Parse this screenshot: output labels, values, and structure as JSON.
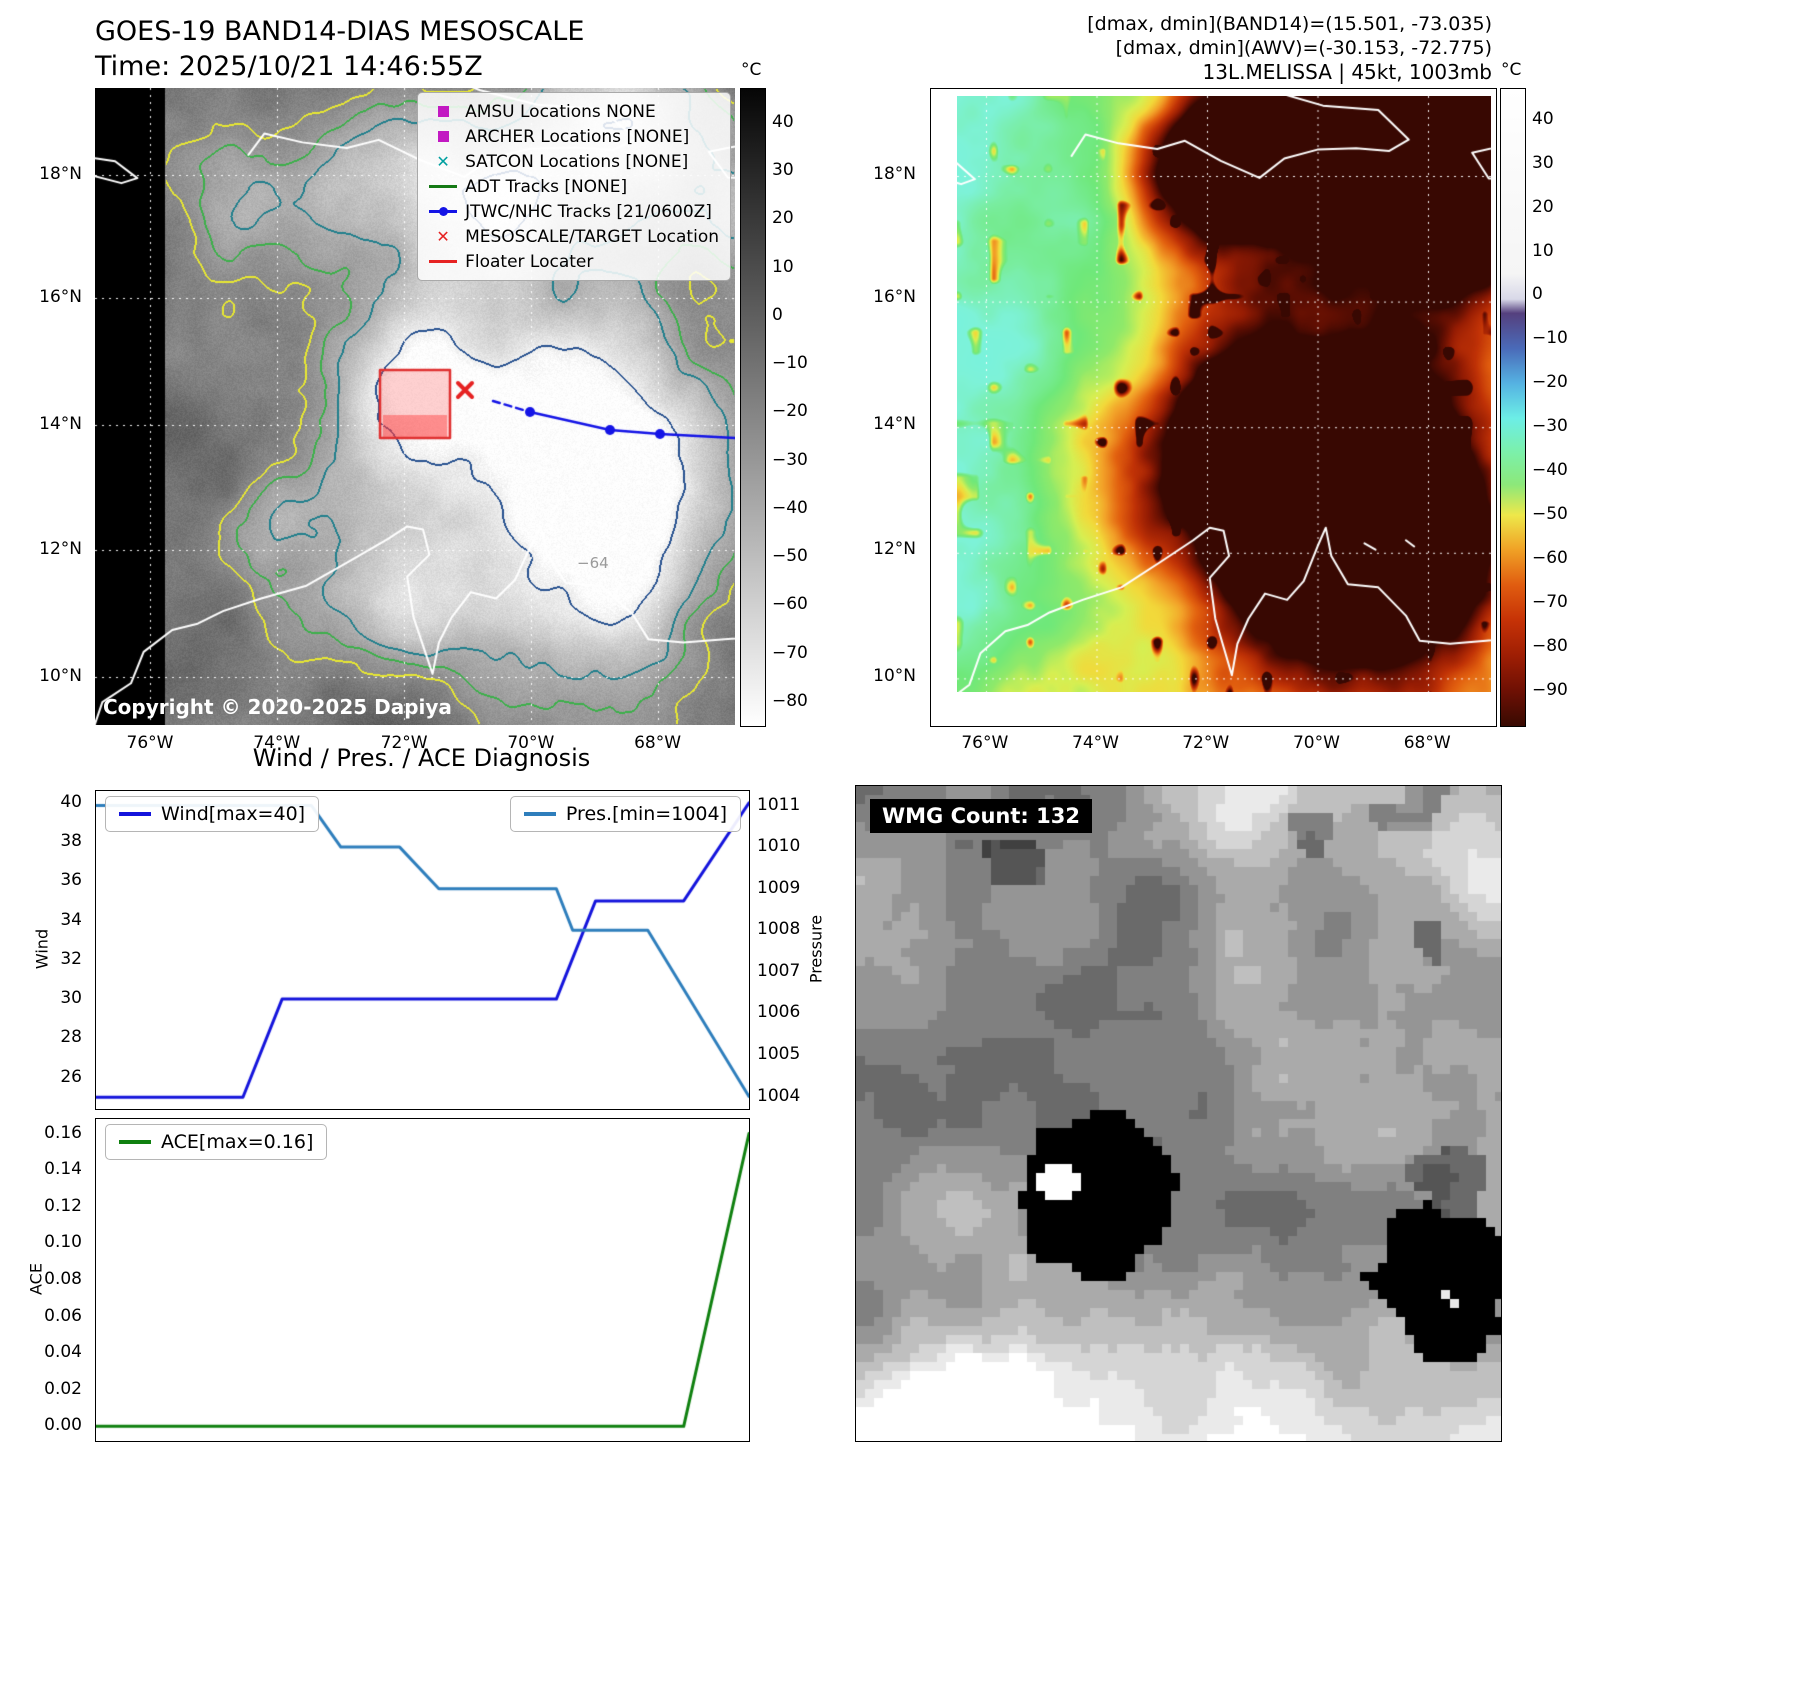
{
  "band14_panel": {
    "title": "GOES-19 BAND14-DIAS MESOSCALE",
    "time_line": "Time: 2025/10/21 14:46:55Z",
    "copyright": "Copyright © 2020-2025 Dapiya",
    "contour_label": "−64",
    "legend": [
      {
        "label": "AMSU Locations NONE",
        "marker": "square",
        "color": "#c219c2"
      },
      {
        "label": "ARCHER Locations [NONE]",
        "marker": "square",
        "color": "#c219c2"
      },
      {
        "label": "SATCON Locations [NONE]",
        "marker": "x",
        "color": "#00a0a0"
      },
      {
        "label": "ADT Tracks [NONE]",
        "marker": "line",
        "color": "#157a15"
      },
      {
        "label": "JTWC/NHC Tracks [21/0600Z]",
        "marker": "line-dot",
        "color": "#1414e6"
      },
      {
        "label": "MESOSCALE/TARGET Location",
        "marker": "x",
        "color": "#e62222"
      },
      {
        "label": "Floater Locater",
        "marker": "line",
        "color": "#e62222"
      }
    ],
    "x_ticks": [
      "76°W",
      "74°W",
      "72°W",
      "70°W",
      "68°W"
    ],
    "y_ticks": [
      "18°N",
      "16°N",
      "14°N",
      "12°N",
      "10°N"
    ],
    "colorbar": {
      "unit": "°C",
      "tick_values": [
        40,
        30,
        20,
        10,
        0,
        -10,
        -20,
        -30,
        -40,
        -50,
        -60,
        -70,
        -80
      ],
      "range": [
        47,
        -85
      ]
    }
  },
  "awv_panel": {
    "annotations": [
      "[dmax, dmin](BAND14)=(15.501, -73.035)",
      "[dmax, dmin](AWV)=(-30.153, -72.775)",
      "13L.MELISSA | 45kt, 1003mb"
    ],
    "x_ticks": [
      "76°W",
      "74°W",
      "72°W",
      "70°W",
      "68°W"
    ],
    "y_ticks": [
      "18°N",
      "16°N",
      "14°N",
      "12°N",
      "10°N"
    ],
    "colorbar": {
      "unit": "°C",
      "tick_values": [
        40,
        30,
        20,
        10,
        0,
        -10,
        -20,
        -30,
        -40,
        -50,
        -60,
        -70,
        -80,
        -90
      ],
      "range": [
        47,
        -98
      ]
    }
  },
  "wmg_panel": {
    "label": "WMG Count: 132"
  },
  "chart_data": [
    {
      "id": "wind_pressure",
      "type": "line",
      "title": "Wind / Pres. / ACE Diagnosis",
      "axes": {
        "left": {
          "label": "Wind",
          "ticks": [
            26,
            28,
            30,
            32,
            34,
            36,
            38,
            40
          ],
          "range": [
            24.4,
            40.6
          ],
          "decimals": 0
        },
        "right": {
          "label": "Pressure",
          "ticks": [
            1004,
            1005,
            1006,
            1007,
            1008,
            1009,
            1010,
            1011
          ],
          "range": [
            1003.7,
            1011.35
          ],
          "decimals": 0
        }
      },
      "series": [
        {
          "name": "Wind[max=40]",
          "axis": "left",
          "color": "#1414dc",
          "legend_pos": "left",
          "points": [
            [
              0,
              25
            ],
            [
              0.225,
              25
            ],
            [
              0.285,
              30
            ],
            [
              0.705,
              30
            ],
            [
              0.765,
              35
            ],
            [
              0.9,
              35
            ],
            [
              1,
              40
            ]
          ]
        },
        {
          "name": "Pres.[min=1004]",
          "axis": "right",
          "color": "#2e7ebc",
          "legend_pos": "right",
          "points": [
            [
              0,
              1011
            ],
            [
              0.33,
              1011
            ],
            [
              0.375,
              1010
            ],
            [
              0.465,
              1010
            ],
            [
              0.525,
              1009
            ],
            [
              0.705,
              1009
            ],
            [
              0.73,
              1008
            ],
            [
              0.845,
              1008
            ],
            [
              1,
              1004
            ]
          ]
        }
      ]
    },
    {
      "id": "ace",
      "type": "line",
      "title": "",
      "axes": {
        "left": {
          "label": "ACE",
          "ticks": [
            0,
            0.02,
            0.04,
            0.06,
            0.08,
            0.1,
            0.12,
            0.14,
            0.16
          ],
          "range": [
            -0.008,
            0.168
          ],
          "decimals": 2
        }
      },
      "series": [
        {
          "name": "ACE[max=0.16]",
          "axis": "left",
          "color": "#0f800f",
          "legend_pos": "left",
          "points": [
            [
              0,
              0
            ],
            [
              0.9,
              0
            ],
            [
              1,
              0.16
            ]
          ]
        }
      ]
    }
  ]
}
